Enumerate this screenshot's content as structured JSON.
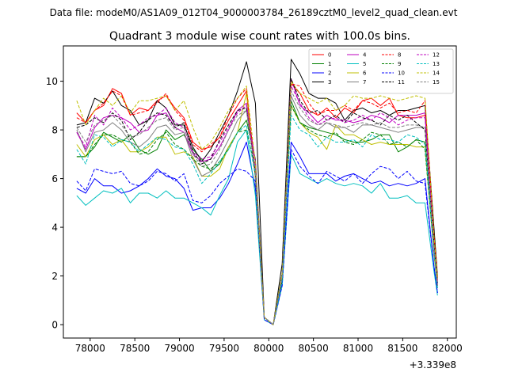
{
  "file_label": "Data file: modeM0/AS1A09_012T04_9000003784_26189cztM0_level2_quad_clean.evt",
  "chart_data": {
    "type": "line",
    "title": "Quadrant 3 module wise count rates with 100.0s bins.",
    "xlabel": "",
    "ylabel": "",
    "x_offset_label": "+3.339e8",
    "xlim": [
      77700,
      82100
    ],
    "ylim": [
      -0.55,
      11.45
    ],
    "xticks": [
      78000,
      78500,
      79000,
      79500,
      80000,
      80500,
      81000,
      81500,
      82000
    ],
    "yticks": [
      0,
      2,
      4,
      6,
      8,
      10
    ],
    "x": [
      77850,
      77950,
      78050,
      78150,
      78250,
      78350,
      78450,
      78550,
      78650,
      78750,
      78850,
      78950,
      79050,
      79150,
      79250,
      79350,
      79450,
      79550,
      79650,
      79750,
      79850,
      79950,
      80050,
      80150,
      80250,
      80350,
      80450,
      80550,
      80650,
      80750,
      80850,
      80950,
      81050,
      81150,
      81250,
      81350,
      81450,
      81550,
      81650,
      81750,
      81850,
      81890
    ],
    "legend_location": "top-right",
    "legend_columns": 4,
    "series": [
      {
        "name": "0",
        "color": "#ff0000",
        "dash": "solid",
        "values": [
          8.7,
          8.3,
          8.8,
          9.0,
          9.7,
          9.5,
          8.6,
          8.9,
          8.8,
          9.2,
          9.4,
          8.9,
          8.5,
          7.5,
          7.2,
          7.3,
          7.7,
          8.4,
          9.0,
          9.6,
          6.0,
          0.3,
          0.0,
          1.8,
          9.9,
          9.5,
          8.8,
          8.6,
          8.9,
          8.5,
          8.9,
          8.7,
          9.2,
          9.3,
          9.0,
          9.3,
          8.6,
          8.5,
          8.5,
          8.6,
          3.5,
          1.8
        ]
      },
      {
        "name": "1",
        "color": "#008000",
        "dash": "solid",
        "values": [
          6.9,
          6.9,
          7.3,
          7.9,
          7.7,
          7.5,
          7.8,
          7.2,
          7.0,
          7.2,
          8.0,
          7.6,
          7.8,
          7.2,
          6.8,
          6.3,
          6.6,
          7.3,
          7.9,
          8.4,
          6.8,
          0.3,
          0.0,
          1.9,
          9.2,
          8.3,
          8.1,
          8.0,
          7.9,
          7.8,
          7.6,
          7.5,
          7.5,
          7.6,
          7.8,
          7.8,
          7.1,
          7.3,
          7.6,
          7.5,
          3.0,
          1.6
        ]
      },
      {
        "name": "2",
        "color": "#0000ff",
        "dash": "solid",
        "values": [
          5.6,
          5.4,
          6.0,
          5.7,
          5.7,
          5.4,
          5.5,
          5.7,
          6.0,
          6.4,
          6.1,
          6.0,
          5.6,
          4.7,
          4.8,
          4.8,
          5.2,
          5.8,
          6.6,
          7.5,
          5.6,
          0.2,
          0.0,
          1.7,
          7.5,
          6.9,
          6.2,
          6.2,
          6.2,
          5.9,
          6.1,
          6.2,
          6.0,
          5.8,
          5.9,
          5.7,
          5.8,
          5.7,
          5.8,
          6.0,
          2.4,
          1.3
        ]
      },
      {
        "name": "3",
        "color": "#000000",
        "dash": "solid",
        "values": [
          8.2,
          8.3,
          9.3,
          9.1,
          9.6,
          9.0,
          8.8,
          8.2,
          8.4,
          9.2,
          8.9,
          8.2,
          8.2,
          7.3,
          6.7,
          7.2,
          7.9,
          8.6,
          9.6,
          10.8,
          9.1,
          0.3,
          0.0,
          2.5,
          10.9,
          10.3,
          9.5,
          9.3,
          9.3,
          9.1,
          8.4,
          8.8,
          8.9,
          8.7,
          8.8,
          8.6,
          8.8,
          8.8,
          8.9,
          9.0,
          4.0,
          2.0
        ]
      },
      {
        "name": "4",
        "color": "#bf00bf",
        "dash": "solid",
        "values": [
          7.9,
          7.2,
          8.1,
          8.5,
          8.6,
          8.5,
          8.3,
          7.9,
          8.0,
          8.6,
          8.7,
          8.1,
          7.9,
          7.0,
          6.7,
          6.8,
          7.3,
          8.0,
          8.8,
          9.1,
          6.7,
          0.3,
          0.0,
          2.0,
          10.1,
          9.0,
          8.7,
          8.3,
          8.6,
          8.4,
          8.4,
          8.3,
          8.4,
          8.6,
          8.5,
          8.3,
          8.6,
          8.6,
          8.6,
          8.7,
          3.3,
          1.7
        ]
      },
      {
        "name": "5",
        "color": "#00bfbf",
        "dash": "solid",
        "values": [
          5.3,
          4.9,
          5.2,
          5.5,
          5.4,
          5.6,
          5.0,
          5.4,
          5.4,
          5.2,
          5.5,
          5.2,
          5.2,
          5.0,
          4.8,
          4.5,
          5.3,
          6.0,
          7.5,
          8.0,
          5.3,
          0.2,
          0.0,
          1.6,
          7.0,
          6.2,
          6.0,
          5.8,
          6.0,
          5.8,
          5.7,
          5.8,
          5.7,
          5.4,
          5.8,
          5.2,
          5.2,
          5.3,
          5.0,
          5.0,
          2.2,
          1.2
        ]
      },
      {
        "name": "6",
        "color": "#bfbf00",
        "dash": "solid",
        "values": [
          7.4,
          6.9,
          7.6,
          7.8,
          7.4,
          7.6,
          7.1,
          7.1,
          7.3,
          7.7,
          7.7,
          7.0,
          7.1,
          6.9,
          6.1,
          6.1,
          6.4,
          7.3,
          7.9,
          9.5,
          6.0,
          0.3,
          0.0,
          2.1,
          9.0,
          8.3,
          7.9,
          7.7,
          7.2,
          8.2,
          7.8,
          7.8,
          7.6,
          7.4,
          7.5,
          7.4,
          7.4,
          7.4,
          7.3,
          7.3,
          2.9,
          1.5
        ]
      },
      {
        "name": "7",
        "color": "#808080",
        "dash": "solid",
        "values": [
          8.0,
          7.1,
          7.9,
          8.0,
          8.3,
          8.0,
          7.5,
          7.3,
          7.6,
          8.1,
          8.2,
          7.8,
          7.9,
          6.8,
          6.1,
          6.3,
          6.9,
          7.6,
          8.4,
          8.8,
          6.3,
          0.3,
          0.0,
          2.0,
          9.4,
          8.6,
          8.2,
          8.0,
          8.3,
          8.1,
          8.1,
          7.9,
          8.2,
          8.2,
          8.1,
          8.0,
          7.9,
          8.0,
          8.1,
          8.1,
          3.1,
          1.6
        ]
      },
      {
        "name": "8",
        "color": "#ff0000",
        "dash": "dashed",
        "values": [
          8.5,
          8.3,
          8.8,
          9.1,
          9.6,
          9.4,
          8.6,
          8.7,
          8.8,
          9.1,
          9.5,
          8.8,
          8.4,
          7.4,
          7.1,
          7.4,
          7.7,
          8.6,
          9.3,
          9.7,
          6.1,
          0.3,
          0.0,
          1.9,
          9.9,
          9.8,
          9.1,
          8.6,
          8.8,
          8.8,
          9.0,
          8.8,
          9.2,
          9.1,
          8.9,
          9.1,
          8.7,
          8.8,
          8.7,
          9.2,
          3.7,
          1.9
        ]
      },
      {
        "name": "9",
        "color": "#008000",
        "dash": "dashed",
        "values": [
          6.9,
          6.9,
          7.4,
          7.8,
          7.8,
          7.6,
          7.5,
          7.0,
          7.1,
          7.6,
          7.9,
          7.4,
          7.2,
          6.8,
          6.5,
          6.4,
          6.7,
          7.2,
          7.9,
          8.0,
          6.4,
          0.3,
          0.0,
          1.8,
          9.0,
          8.3,
          8.0,
          7.8,
          7.7,
          7.9,
          7.5,
          7.4,
          7.6,
          7.9,
          7.8,
          7.4,
          7.5,
          7.3,
          7.6,
          7.2,
          3.0,
          1.6
        ]
      },
      {
        "name": "10",
        "color": "#0000ff",
        "dash": "dashed",
        "values": [
          5.9,
          5.5,
          6.4,
          6.3,
          6.2,
          6.3,
          5.8,
          5.7,
          5.9,
          6.3,
          6.2,
          5.9,
          6.2,
          5.1,
          5.0,
          5.3,
          5.8,
          6.1,
          6.4,
          6.3,
          5.9,
          0.2,
          0.0,
          1.6,
          7.2,
          6.5,
          6.1,
          5.8,
          6.3,
          6.1,
          5.9,
          6.2,
          5.8,
          6.2,
          6.5,
          6.4,
          6.0,
          6.3,
          5.9,
          5.8,
          2.4,
          1.3
        ]
      },
      {
        "name": "11",
        "color": "#000000",
        "dash": "dashed",
        "values": [
          8.1,
          8.2,
          8.5,
          8.3,
          8.7,
          8.4,
          7.6,
          7.9,
          8.4,
          8.7,
          8.6,
          8.1,
          8.3,
          7.1,
          6.6,
          6.8,
          7.6,
          8.2,
          8.8,
          8.9,
          6.2,
          0.3,
          0.0,
          2.1,
          10.1,
          9.2,
          8.7,
          8.8,
          8.4,
          8.6,
          8.3,
          8.7,
          8.5,
          8.4,
          8.2,
          8.6,
          8.4,
          8.6,
          8.3,
          8.0,
          3.4,
          1.7
        ]
      },
      {
        "name": "12",
        "color": "#bf00bf",
        "dash": "dashed",
        "values": [
          7.9,
          7.3,
          8.6,
          8.2,
          8.9,
          8.5,
          8.0,
          8.2,
          8.5,
          8.6,
          8.9,
          8.3,
          8.1,
          7.1,
          6.8,
          6.9,
          7.5,
          8.1,
          8.7,
          9.0,
          6.4,
          0.3,
          0.0,
          2.0,
          9.8,
          9.1,
          8.5,
          8.2,
          8.4,
          8.5,
          8.3,
          8.4,
          8.6,
          8.4,
          8.7,
          8.5,
          8.2,
          8.4,
          8.5,
          8.5,
          3.2,
          1.7
        ]
      },
      {
        "name": "13",
        "color": "#00bfbf",
        "dash": "dashed",
        "values": [
          7.2,
          6.6,
          7.8,
          7.7,
          7.3,
          7.6,
          7.5,
          7.1,
          7.4,
          7.7,
          7.6,
          7.3,
          7.2,
          6.6,
          5.8,
          6.2,
          6.7,
          7.2,
          7.9,
          8.2,
          6.1,
          0.3,
          0.0,
          1.8,
          8.6,
          8.0,
          7.8,
          7.3,
          7.7,
          7.5,
          7.5,
          7.6,
          7.3,
          7.8,
          7.6,
          7.6,
          7.5,
          7.8,
          7.7,
          7.4,
          3.0,
          1.5
        ]
      },
      {
        "name": "14",
        "color": "#bfbf00",
        "dash": "dashed",
        "values": [
          9.2,
          8.2,
          8.8,
          9.3,
          9.0,
          9.4,
          8.7,
          9.2,
          9.2,
          9.3,
          9.4,
          8.8,
          9.2,
          8.1,
          7.2,
          7.5,
          8.1,
          8.8,
          9.3,
          9.8,
          6.6,
          0.3,
          0.0,
          2.1,
          10.0,
          9.5,
          9.3,
          9.1,
          9.3,
          8.8,
          9.0,
          9.4,
          9.3,
          9.3,
          9.4,
          9.3,
          9.2,
          9.3,
          9.4,
          9.3,
          3.7,
          1.9
        ]
      },
      {
        "name": "15",
        "color": "#808080",
        "dash": "dashed",
        "values": [
          8.1,
          7.5,
          8.2,
          8.4,
          8.6,
          8.2,
          7.7,
          7.8,
          8.1,
          8.4,
          8.5,
          8.0,
          8.1,
          7.0,
          6.5,
          6.6,
          7.2,
          8.0,
          8.6,
          8.8,
          6.3,
          0.3,
          0.0,
          2.0,
          9.6,
          8.9,
          8.4,
          8.2,
          8.3,
          8.2,
          8.1,
          8.2,
          8.3,
          8.2,
          8.3,
          8.1,
          8.1,
          8.2,
          8.2,
          8.1,
          3.2,
          1.6
        ]
      }
    ]
  }
}
